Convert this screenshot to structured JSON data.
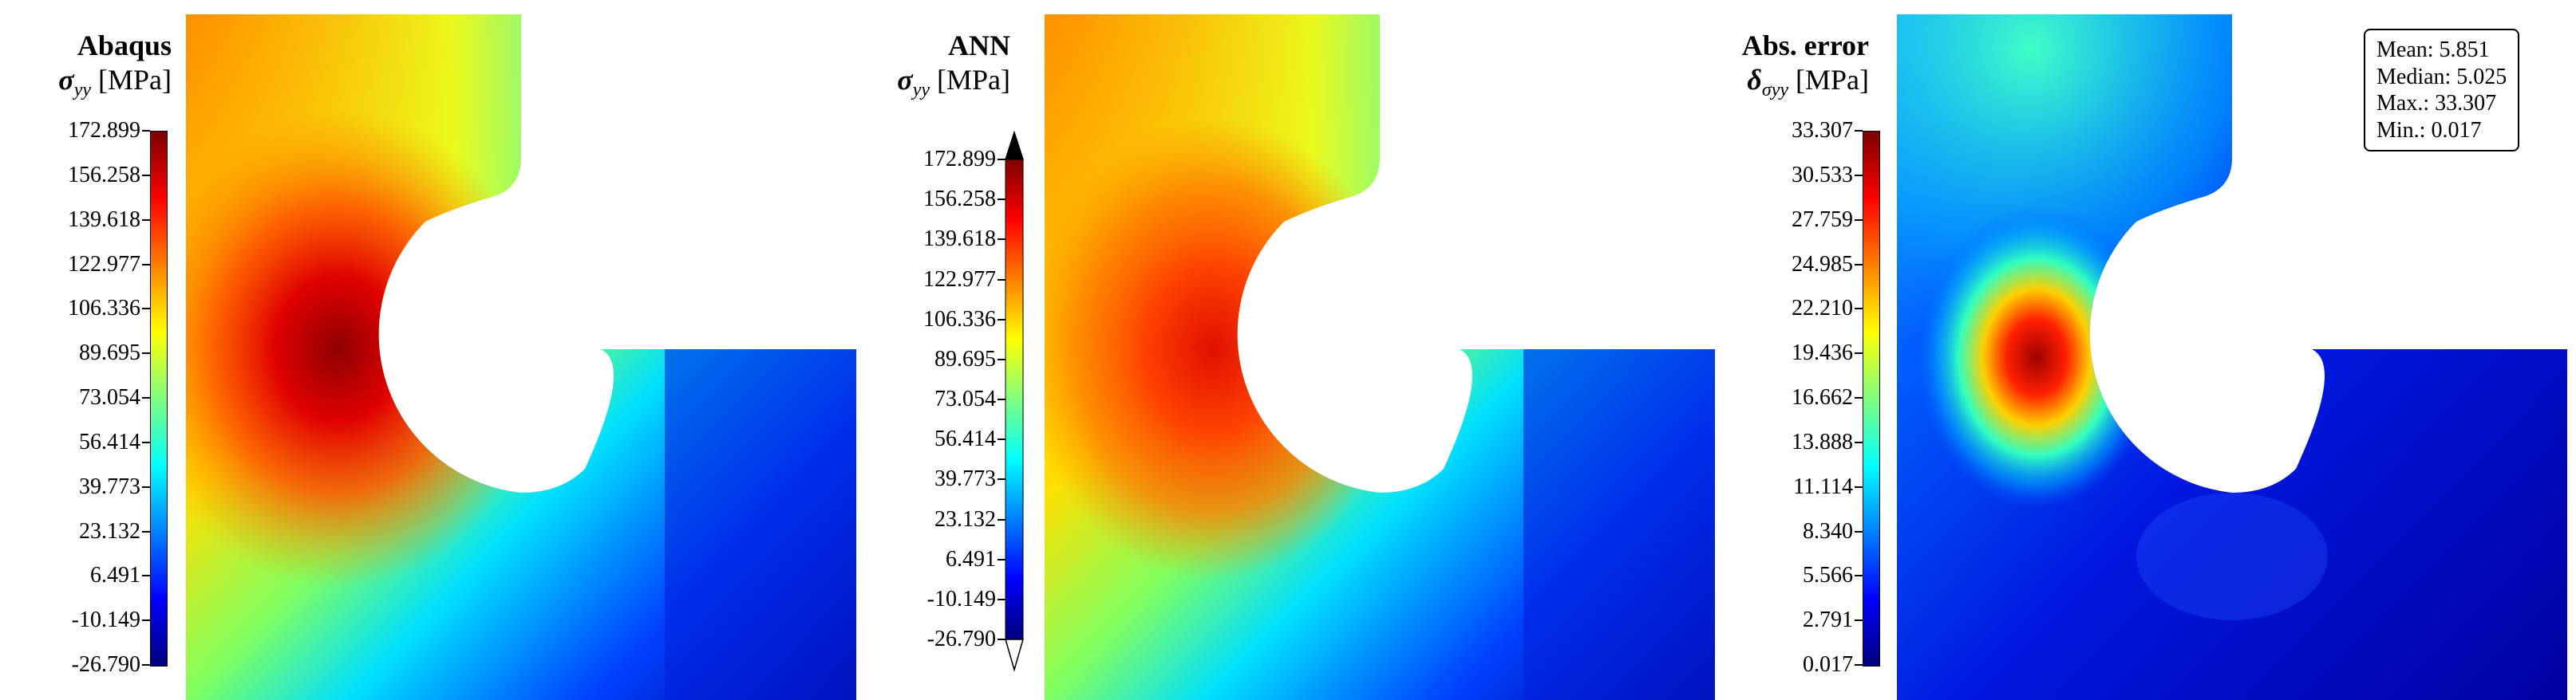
{
  "panels": [
    {
      "id": "abaqus",
      "title": "Abaqus",
      "quantity_symbol": "σ",
      "quantity_sub": "yy",
      "unit": "[MPa]",
      "colorbar_ticks": [
        "172.899",
        "156.258",
        "139.618",
        "122.977",
        "106.336",
        "89.695",
        "73.054",
        "56.414",
        "39.773",
        "23.132",
        "6.491",
        "-10.149",
        "-26.790"
      ],
      "colorbar_style": "box"
    },
    {
      "id": "ann",
      "title": "ANN",
      "quantity_symbol": "σ",
      "quantity_sub": "yy",
      "unit": "[MPa]",
      "colorbar_ticks": [
        "172.899",
        "156.258",
        "139.618",
        "122.977",
        "106.336",
        "89.695",
        "73.054",
        "56.414",
        "39.773",
        "23.132",
        "6.491",
        "-10.149",
        "-26.790"
      ],
      "colorbar_style": "arrows"
    },
    {
      "id": "error",
      "title": "Abs. error",
      "quantity_symbol": "δ",
      "quantity_sub": "σyy",
      "unit": "[MPa]",
      "colorbar_ticks": [
        "33.307",
        "30.533",
        "27.759",
        "24.985",
        "22.210",
        "19.436",
        "16.662",
        "13.888",
        "11.114",
        "8.340",
        "5.566",
        "2.791",
        "0.017"
      ],
      "colorbar_style": "box"
    }
  ],
  "stats": {
    "mean": "Mean: 5.851",
    "median": "Median: 5.025",
    "max": "Max.: 33.307",
    "min": "Min.: 0.017"
  },
  "colors": {
    "jet_dark_red": "#7f0000",
    "jet_red": "#ff0000",
    "jet_orange": "#ff8c00",
    "jet_yellow": "#ffff00",
    "jet_cyan": "#00ffff",
    "jet_blue": "#0000ff",
    "jet_dark_blue": "#00007f"
  }
}
